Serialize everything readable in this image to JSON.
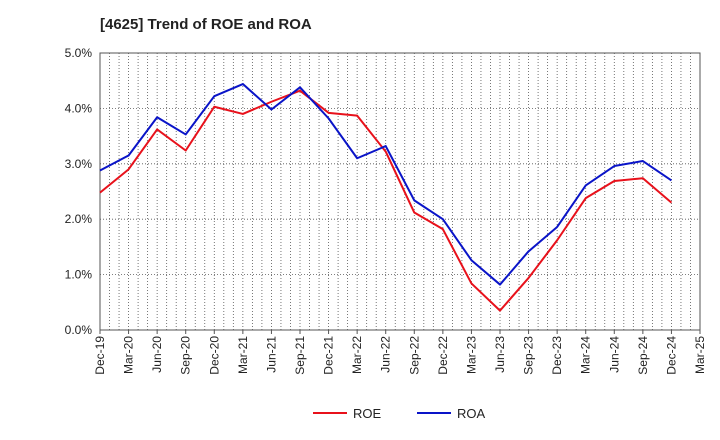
{
  "chart_data": {
    "type": "line",
    "title": "[4625]  Trend of ROE and ROA",
    "xlabel": "",
    "ylabel": "",
    "categories": [
      "Dec-19",
      "Mar-20",
      "Jun-20",
      "Sep-20",
      "Dec-20",
      "Mar-21",
      "Jun-21",
      "Sep-21",
      "Dec-21",
      "Mar-22",
      "Jun-22",
      "Sep-22",
      "Dec-22",
      "Mar-23",
      "Jun-23",
      "Sep-23",
      "Dec-23",
      "Mar-24",
      "Jun-24",
      "Sep-24",
      "Dec-24",
      "Mar-25"
    ],
    "ylim": [
      0,
      5
    ],
    "yticks": [
      "0.0%",
      "1.0%",
      "2.0%",
      "3.0%",
      "4.0%",
      "5.0%"
    ],
    "grid": true,
    "legend_position": "bottom",
    "series": [
      {
        "name": "ROE",
        "color": "#e8111b",
        "values": [
          2.48,
          2.9,
          3.62,
          3.24,
          4.03,
          3.9,
          4.12,
          4.32,
          3.92,
          3.87,
          3.22,
          2.12,
          1.82,
          0.84,
          0.35,
          0.94,
          1.62,
          2.38,
          2.69,
          2.74,
          2.3,
          null
        ]
      },
      {
        "name": "ROA",
        "color": "#0a14c8",
        "values": [
          2.88,
          3.15,
          3.84,
          3.53,
          4.22,
          4.44,
          3.98,
          4.38,
          3.82,
          3.1,
          3.32,
          2.34,
          2.0,
          1.26,
          0.82,
          1.42,
          1.86,
          2.61,
          2.96,
          3.05,
          2.7,
          null
        ]
      }
    ]
  }
}
